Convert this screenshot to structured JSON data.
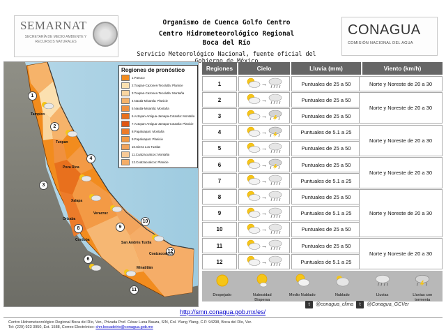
{
  "header": {
    "semarnat_name": "SEMARNAT",
    "semarnat_sub": "Secretaría de Medio Ambiente y Recursos Naturales",
    "title_line1": "Organismo de Cuenca Golfo Centro",
    "title_line2": "Centro Hidrometeorológico Regional",
    "title_line3": "Boca del Río",
    "title_line4": "Servicio Meteorológico Nacional, fuente oficial del Gobierno de México",
    "conagua_name": "CONAGUA",
    "conagua_sub": "Comisión Nacional del Agua"
  },
  "legend": {
    "title": "Regiones de pronóstico",
    "items": [
      {
        "label": "1.Panuco",
        "color": "#f28c1e"
      },
      {
        "label": "2.Tuxpan-Cazones-Tecolutla: Planicie",
        "color": "#fbe0b0"
      },
      {
        "label": "3.Tuxpan-Cazones-Tecolutla: Montaña",
        "color": "#f9d6a0"
      },
      {
        "label": "4.Nautla-Misantla: Planicie",
        "color": "#f6b36a"
      },
      {
        "label": "5.Nautla-Misantla: Montaña",
        "color": "#f0913f"
      },
      {
        "label": "6.Actopan-Antigua-Jamapa-Cotaxtla: Montaña",
        "color": "#e8701d"
      },
      {
        "label": "7.Actopan-Antigua-Jamapa-Cotaxtla: Planicie",
        "color": "#e05512"
      },
      {
        "label": "8.Papaloapan: Montaña",
        "color": "#ec7b2a"
      },
      {
        "label": "9.Papaloapan: Planicie",
        "color": "#f39a45"
      },
      {
        "label": "10.Sierra Los Tuxtlas",
        "color": "#f2a45c"
      },
      {
        "label": "11.Coatzacoalcos: Montaña",
        "color": "#f8c997"
      },
      {
        "label": "12.Coatzacoalcos: Planicie",
        "color": "#f5ad68"
      }
    ]
  },
  "map_labels": [
    {
      "text": "Tampico",
      "cls": "l-tampico"
    },
    {
      "text": "Tuxpan",
      "cls": "l-tuxpan"
    },
    {
      "text": "Poza Rica",
      "cls": "l-pozarica"
    },
    {
      "text": "Xalapa",
      "cls": "l-xalapa"
    },
    {
      "text": "Veracruz",
      "cls": "l-veracruz"
    },
    {
      "text": "Orizaba",
      "cls": "l-orizaba"
    },
    {
      "text": "Córdoba",
      "cls": "l-cordoba"
    },
    {
      "text": "Coatzacoalcos",
      "cls": "l-coatza"
    },
    {
      "text": "Minatitlán",
      "cls": "l-mina"
    },
    {
      "text": "San Andrés Tuxtla",
      "cls": "l-sat"
    }
  ],
  "forecast": {
    "headers": [
      "Regiones",
      "Cielo",
      "Lluvia (mm)",
      "Viento (km/h)"
    ],
    "rows": [
      {
        "region": "1",
        "rain": "Puntuales de 25 a 50",
        "to_icon": "light-rain"
      },
      {
        "region": "2",
        "rain": "Puntuales de 25 a 50",
        "to_icon": "light-rain"
      },
      {
        "region": "3",
        "rain": "Puntuales de 25 a 50",
        "to_icon": "thunderstorm"
      },
      {
        "region": "4",
        "rain": "Puntuales de 5.1 a 25",
        "to_icon": "thunderstorm"
      },
      {
        "region": "5",
        "rain": "Puntuales de 25 a 50",
        "to_icon": "light-rain"
      },
      {
        "region": "6",
        "rain": "Puntuales de 25 a 50",
        "to_icon": "thunderstorm"
      },
      {
        "region": "7",
        "rain": "Puntuales de 5.1 a 25",
        "to_icon": "light-rain"
      },
      {
        "region": "8",
        "rain": "Puntuales de 25 a 50",
        "to_icon": "light-rain"
      },
      {
        "region": "9",
        "rain": "Puntuales de 5.1 a 25",
        "to_icon": "light-rain"
      },
      {
        "region": "10",
        "rain": "Puntuales de 25 a 50",
        "to_icon": "light-rain"
      },
      {
        "region": "11",
        "rain": "Puntuales de 25 a 50",
        "to_icon": "light-rain"
      },
      {
        "region": "12",
        "rain": "Puntuales de 5.1 a 25",
        "to_icon": "light-rain"
      }
    ],
    "wind": [
      {
        "text": "Norte y Noreste de 20 a 30",
        "rows": [
          1
        ]
      },
      {
        "text": "Norte y Noreste de 20 a 30",
        "rows": [
          2,
          3
        ]
      },
      {
        "text": "Norte y Noreste de 20 a 30",
        "rows": [
          4,
          5
        ]
      },
      {
        "text": "Norte y Noreste de 20 a 30",
        "rows": [
          6,
          7
        ]
      },
      {
        "text": "Norte y Noreste de 20 a 30",
        "rows": [
          8,
          9,
          10
        ]
      },
      {
        "text": "Norte y Noreste de 20 a 30",
        "rows": [
          11,
          12
        ]
      }
    ]
  },
  "icon_legend": [
    {
      "label": "Despejado",
      "icon": "sun-icon"
    },
    {
      "label": "Nubosidad Dispersa",
      "icon": "sun-small-cloud-icon"
    },
    {
      "label": "Medio Nublado",
      "icon": "partly-cloudy-icon"
    },
    {
      "label": "Nublado",
      "icon": "cloud-icon"
    },
    {
      "label": "Lluvias",
      "icon": "rain-icon"
    },
    {
      "label": "Lluvias con tormenta",
      "icon": "thunderstorm-icon"
    }
  ],
  "footer": {
    "url": "http://smn.conagua.gob.mx/es/",
    "twitter1": "@conagua_clima",
    "twitter2": "@Conagua_GCVer",
    "line1": "Centro Hidrometeorológico Regional Boca del Río, Ver., Privada Prof. César Luna Bauza, S/N, Col. Ylang Ylang, C.P. 94298, Boca del Río, Ver.",
    "line2": "Tel: (229) 923 3950, Ext. 1588, Correo Electrónico:",
    "email": "chrr.bocadelrio@conagua.gob.mx"
  }
}
